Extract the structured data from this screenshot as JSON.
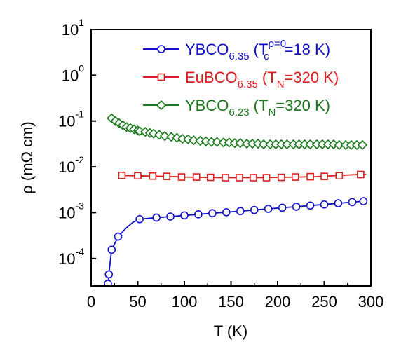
{
  "chart_data": {
    "type": "line",
    "xlabel": "T (K)",
    "ylabel": "ρ (mΩ cm)",
    "xlim": [
      0,
      300
    ],
    "ylim_exponent": [
      -4.6,
      1
    ],
    "y_scale": "log",
    "x_ticks": [
      0,
      50,
      100,
      150,
      200,
      250,
      300
    ],
    "y_ticks": [
      {
        "base": "10",
        "exp": "1",
        "value": 10
      },
      {
        "base": "10",
        "exp": "0",
        "value": 1
      },
      {
        "base": "10",
        "exp": "-1",
        "value": 0.1
      },
      {
        "base": "10",
        "exp": "-2",
        "value": 0.01
      },
      {
        "base": "10",
        "exp": "-3",
        "value": 0.001
      },
      {
        "base": "10",
        "exp": "-4",
        "value": 0.0001
      }
    ],
    "grid": false,
    "legend_position": "top-right",
    "series": [
      {
        "name": "YBCO6.35 (Tcρ=0=18 K)",
        "legend": {
          "base": "YBCO",
          "sub": "6.35",
          "paren_open": " (T",
          "sub2": "c",
          "sup": "ρ=0",
          "rest": "=18 K)"
        },
        "color": "#1010cc",
        "marker": "circle",
        "points": [
          [
            18,
            2.5e-05
          ],
          [
            19,
            4.5e-05
          ],
          [
            20,
            7e-05
          ],
          [
            22,
            0.000155
          ],
          [
            29,
            0.0003
          ],
          [
            37,
            0.00045
          ],
          [
            45,
            0.00062
          ],
          [
            52,
            0.00072
          ],
          [
            70,
            0.00078
          ],
          [
            85,
            0.00082
          ],
          [
            100,
            0.00087
          ],
          [
            115,
            0.00092
          ],
          [
            130,
            0.00097
          ],
          [
            145,
            0.00102
          ],
          [
            160,
            0.00108
          ],
          [
            175,
            0.00114
          ],
          [
            190,
            0.00121
          ],
          [
            205,
            0.00128
          ],
          [
            220,
            0.00135
          ],
          [
            235,
            0.00143
          ],
          [
            250,
            0.00151
          ],
          [
            265,
            0.0016
          ],
          [
            280,
            0.0017
          ],
          [
            292,
            0.00178
          ]
        ],
        "markers": [
          [
            18,
            2.8e-05
          ],
          [
            19,
            4.5e-05
          ],
          [
            22,
            0.000155
          ],
          [
            29,
            0.0003
          ],
          [
            52,
            0.00072
          ],
          [
            70,
            0.00078
          ],
          [
            85,
            0.00082
          ],
          [
            100,
            0.00087
          ],
          [
            115,
            0.00092
          ],
          [
            130,
            0.00097
          ],
          [
            145,
            0.00102
          ],
          [
            160,
            0.00108
          ],
          [
            175,
            0.00114
          ],
          [
            190,
            0.00121
          ],
          [
            205,
            0.00128
          ],
          [
            220,
            0.00135
          ],
          [
            235,
            0.00143
          ],
          [
            250,
            0.00151
          ],
          [
            265,
            0.0016
          ],
          [
            280,
            0.0017
          ],
          [
            292,
            0.00178
          ]
        ]
      },
      {
        "name": "EuBCO6.35 (TN=320 K)",
        "legend": {
          "base": "EuBCO",
          "sub": "6.35",
          "paren_open": " (T",
          "sub2": "N",
          "sup": "",
          "rest": "=320 K)"
        },
        "color": "#dd1c1c",
        "marker": "square",
        "points": [
          [
            30,
            0.0065
          ],
          [
            45,
            0.0064
          ],
          [
            60,
            0.0063
          ],
          [
            80,
            0.0062
          ],
          [
            100,
            0.006
          ],
          [
            120,
            0.0059
          ],
          [
            140,
            0.0058
          ],
          [
            160,
            0.0058
          ],
          [
            180,
            0.0058
          ],
          [
            200,
            0.0059
          ],
          [
            220,
            0.006
          ],
          [
            240,
            0.0061
          ],
          [
            260,
            0.0064
          ],
          [
            280,
            0.0067
          ],
          [
            295,
            0.0069
          ]
        ],
        "markers": [
          [
            33,
            0.0065
          ],
          [
            50,
            0.0064
          ],
          [
            66,
            0.0063
          ],
          [
            81,
            0.0062
          ],
          [
            97,
            0.006
          ],
          [
            113,
            0.006
          ],
          [
            128,
            0.0059
          ],
          [
            144,
            0.0058
          ],
          [
            159,
            0.0058
          ],
          [
            174,
            0.0058
          ],
          [
            188,
            0.0058
          ],
          [
            204,
            0.0059
          ],
          [
            219,
            0.006
          ],
          [
            235,
            0.0061
          ],
          [
            250,
            0.0062
          ],
          [
            266,
            0.0064
          ],
          [
            289,
            0.0068
          ]
        ]
      },
      {
        "name": "YBCO6.23 (TN=320 K)",
        "legend": {
          "base": "YBCO",
          "sub": "6.23",
          "paren_open": " (T",
          "sub2": "N",
          "sup": "",
          "rest": "=320 K)"
        },
        "color": "#1a7a1a",
        "marker": "diamond",
        "points": [
          [
            22,
            0.115
          ],
          [
            26,
            0.1
          ],
          [
            30,
            0.088
          ],
          [
            35,
            0.078
          ],
          [
            40,
            0.071
          ],
          [
            45,
            0.066
          ],
          [
            50,
            0.062
          ],
          [
            60,
            0.056
          ],
          [
            70,
            0.051
          ],
          [
            80,
            0.047
          ],
          [
            90,
            0.043
          ],
          [
            100,
            0.04
          ],
          [
            110,
            0.038
          ],
          [
            120,
            0.036
          ],
          [
            130,
            0.035
          ],
          [
            140,
            0.034
          ],
          [
            150,
            0.033
          ],
          [
            170,
            0.032
          ],
          [
            190,
            0.031
          ],
          [
            210,
            0.031
          ],
          [
            230,
            0.031
          ],
          [
            250,
            0.031
          ],
          [
            270,
            0.03
          ],
          [
            295,
            0.03
          ]
        ],
        "markers": [
          [
            22,
            0.115
          ],
          [
            26,
            0.1
          ],
          [
            30,
            0.09
          ],
          [
            34,
            0.081
          ],
          [
            38,
            0.074
          ],
          [
            42,
            0.07
          ],
          [
            46,
            0.066
          ],
          [
            50,
            0.062
          ],
          [
            52,
            0.06
          ],
          [
            58,
            0.058
          ],
          [
            63,
            0.055
          ],
          [
            67,
            0.053
          ],
          [
            73,
            0.05
          ],
          [
            79,
            0.047
          ],
          [
            86,
            0.045
          ],
          [
            92,
            0.043
          ],
          [
            98,
            0.041
          ],
          [
            104,
            0.04
          ],
          [
            110,
            0.038
          ],
          [
            117,
            0.037
          ],
          [
            123,
            0.036
          ],
          [
            129,
            0.035
          ],
          [
            135,
            0.035
          ],
          [
            142,
            0.034
          ],
          [
            148,
            0.034
          ],
          [
            154,
            0.033
          ],
          [
            160,
            0.033
          ],
          [
            167,
            0.032
          ],
          [
            173,
            0.032
          ],
          [
            179,
            0.032
          ],
          [
            185,
            0.031
          ],
          [
            192,
            0.031
          ],
          [
            198,
            0.031
          ],
          [
            204,
            0.031
          ],
          [
            210,
            0.031
          ],
          [
            217,
            0.031
          ],
          [
            223,
            0.031
          ],
          [
            229,
            0.031
          ],
          [
            235,
            0.031
          ],
          [
            242,
            0.031
          ],
          [
            248,
            0.031
          ],
          [
            254,
            0.031
          ],
          [
            260,
            0.031
          ],
          [
            266,
            0.03
          ],
          [
            273,
            0.03
          ],
          [
            279,
            0.03
          ],
          [
            285,
            0.03
          ],
          [
            291,
            0.03
          ]
        ]
      }
    ]
  }
}
